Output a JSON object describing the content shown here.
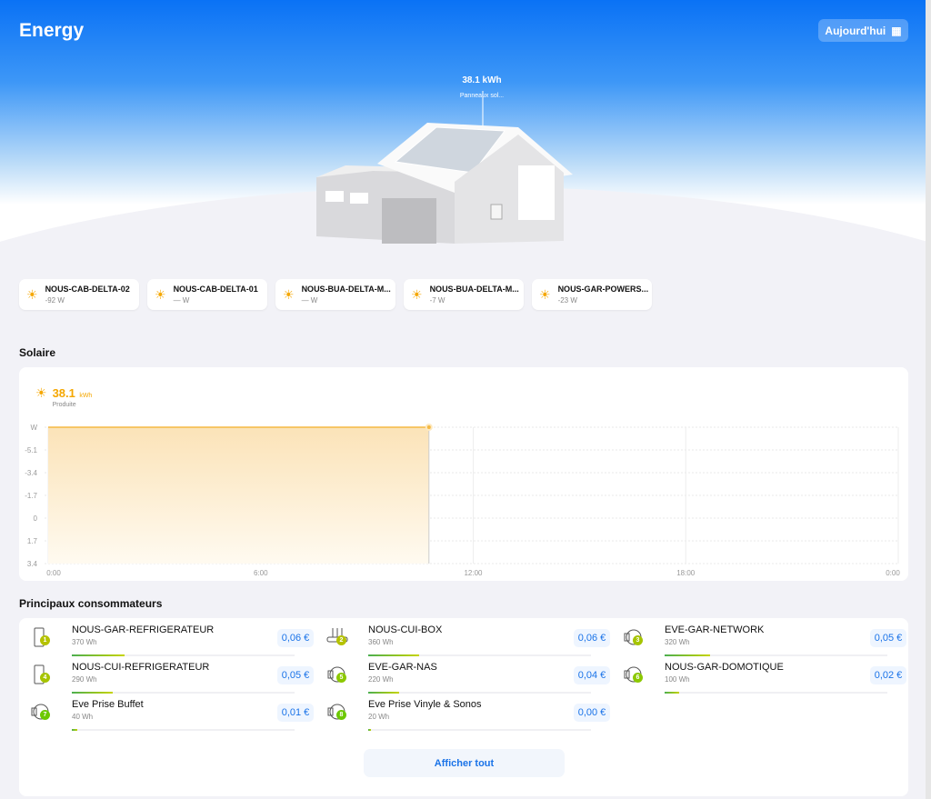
{
  "header": {
    "title": "Energy",
    "date_button": "Aujourd'hui",
    "total": "38.1 kWh",
    "total_label": "Panneaux sol..."
  },
  "devices": [
    {
      "name": "NOUS-CAB-DELTA-02",
      "value": "-92 W"
    },
    {
      "name": "NOUS-CAB-DELTA-01",
      "value": "— W"
    },
    {
      "name": "NOUS-BUA-DELTA-M...",
      "value": "— W"
    },
    {
      "name": "NOUS-BUA-DELTA-M...",
      "value": "-7 W"
    },
    {
      "name": "NOUS-GAR-POWERS...",
      "value": "-23 W"
    }
  ],
  "solar": {
    "heading": "Solaire",
    "value": "38.1",
    "unit": "kWh",
    "label": "Produite"
  },
  "chart_data": {
    "type": "area",
    "ylabel": "W",
    "y_ticks": [
      "W",
      "-5.1",
      "-3.4",
      "-1.7",
      "0",
      "1.7",
      "3.4"
    ],
    "x_ticks": [
      "0:00",
      "6:00",
      "12:00",
      "18:00",
      "0:00"
    ],
    "xlim_hours": [
      0,
      24
    ],
    "ylim": [
      -6.8,
      3.4
    ],
    "y_inverted": true,
    "grid": true,
    "color": "#f5b942",
    "series": [
      {
        "x": [
          "0:00",
          "10:45"
        ],
        "values": [
          -6.8,
          -6.8
        ]
      }
    ]
  },
  "consumers": {
    "heading": "Principaux consommateurs",
    "show_all": "Afficher tout",
    "items": [
      {
        "rank": "1",
        "name": "NOUS-GAR-REFRIGERATEUR",
        "energy": "370 Wh",
        "price": "0,06 €",
        "icon": "fridge-icon",
        "share": 100
      },
      {
        "rank": "2",
        "name": "NOUS-CUI-BOX",
        "energy": "360 Wh",
        "price": "0,06 €",
        "icon": "router-icon",
        "share": 97
      },
      {
        "rank": "3",
        "name": "EVE-GAR-NETWORK",
        "energy": "320 Wh",
        "price": "0,05 €",
        "icon": "plug-icon",
        "share": 86
      },
      {
        "rank": "4",
        "name": "NOUS-CUI-REFRIGERATEUR",
        "energy": "290 Wh",
        "price": "0,05 €",
        "icon": "fridge-icon",
        "share": 78
      },
      {
        "rank": "5",
        "name": "EVE-GAR-NAS",
        "energy": "220 Wh",
        "price": "0,04 €",
        "icon": "plug-icon",
        "share": 59
      },
      {
        "rank": "6",
        "name": "NOUS-GAR-DOMOTIQUE",
        "energy": "100 Wh",
        "price": "0,02 €",
        "icon": "plug-icon",
        "share": 27
      },
      {
        "rank": "7",
        "name": "Eve Prise Buffet",
        "energy": "40 Wh",
        "price": "0,01 €",
        "icon": "plug-icon",
        "share": 11
      },
      {
        "rank": "8",
        "name": "Eve Prise Vinyle & Sonos",
        "energy": "20 Wh",
        "price": "0,00 €",
        "icon": "plug-icon",
        "share": 5
      }
    ]
  }
}
